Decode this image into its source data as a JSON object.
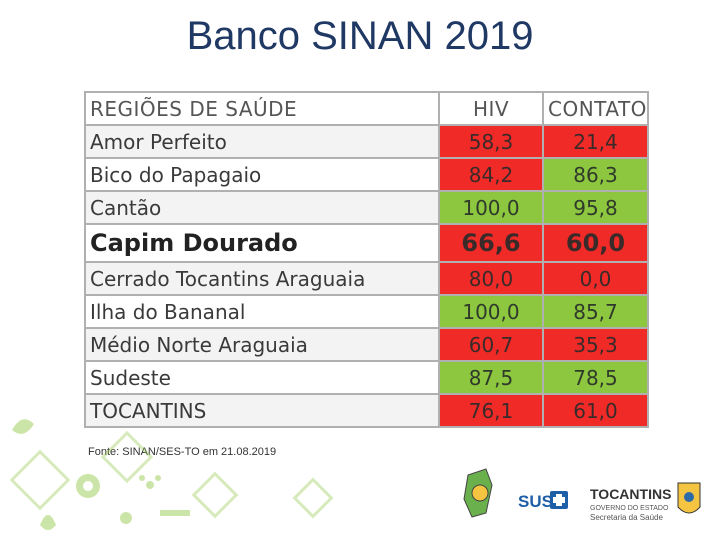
{
  "title": "Banco SINAN 2019",
  "table": {
    "headers": [
      "REGIÕES DE SAÚDE",
      "HIV",
      "CONTATO"
    ],
    "rows": [
      {
        "region": "Amor Perfeito",
        "hiv": "58,3",
        "contato": "21,4",
        "hiv_color": "red",
        "contato_color": "red"
      },
      {
        "region": "Bico do Papagaio",
        "hiv": "84,2",
        "contato": "86,3",
        "hiv_color": "red",
        "contato_color": "green"
      },
      {
        "region": "Cantão",
        "hiv": "100,0",
        "contato": "95,8",
        "hiv_color": "green",
        "contato_color": "green"
      },
      {
        "region": "Capim Dourado",
        "hiv": "66,6",
        "contato": "60,0",
        "hiv_color": "red",
        "contato_color": "red"
      },
      {
        "region": "Cerrado Tocantins Araguaia",
        "hiv": "80,0",
        "contato": "0,0",
        "hiv_color": "red",
        "contato_color": "red"
      },
      {
        "region": "Ilha do Bananal",
        "hiv": "100,0",
        "contato": "85,7",
        "hiv_color": "green",
        "contato_color": "green"
      },
      {
        "region": "Médio Norte Araguaia",
        "hiv": "60,7",
        "contato": "35,3",
        "hiv_color": "red",
        "contato_color": "red"
      },
      {
        "region": "Sudeste",
        "hiv": "87,5",
        "contato": "78,5",
        "hiv_color": "green",
        "contato_color": "green"
      },
      {
        "region": "TOCANTINS",
        "hiv": "76,1",
        "contato": "61,0",
        "hiv_color": "red",
        "contato_color": "red"
      }
    ]
  },
  "source": "Fonte: SINAN/SES-TO em 21.08.2019",
  "logos": {
    "sus": "SUS",
    "state": "TOCANTINS",
    "state_sub1": "GOVERNO DO ESTADO",
    "state_sub2": "Secretaria da Saúde"
  },
  "colors": {
    "title": "#1f3864",
    "red": "#f02a27",
    "green": "#8dc63f"
  }
}
